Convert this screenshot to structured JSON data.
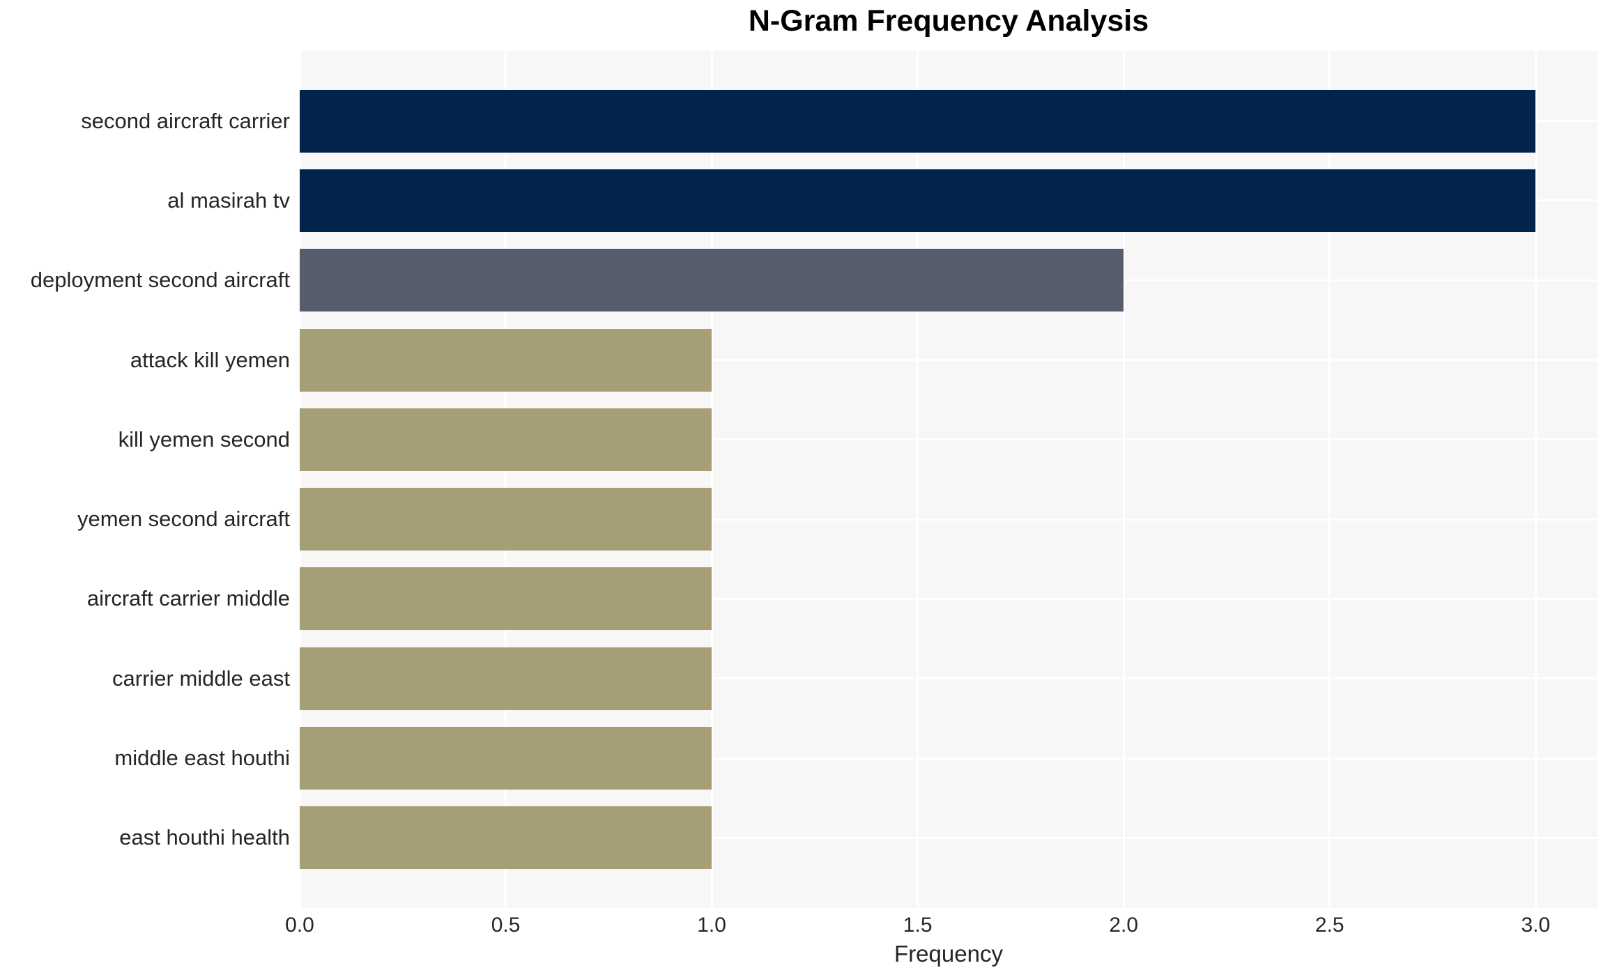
{
  "title": "N-Gram Frequency Analysis",
  "chart_data": {
    "type": "bar",
    "orientation": "horizontal",
    "title": "N-Gram Frequency Analysis",
    "xlabel": "Frequency",
    "ylabel": "",
    "categories": [
      "second aircraft carrier",
      "al masirah tv",
      "deployment second aircraft",
      "attack kill yemen",
      "kill yemen second",
      "yemen second aircraft",
      "aircraft carrier middle",
      "carrier middle east",
      "middle east houthi",
      "east houthi health"
    ],
    "values": [
      3,
      3,
      2,
      1,
      1,
      1,
      1,
      1,
      1,
      1
    ],
    "bar_colors": [
      "#02234c",
      "#02234c",
      "#575d6d",
      "#a69e74",
      "#a69e74",
      "#a69e74",
      "#a69e74",
      "#a69e74",
      "#a69e74",
      "#a69e74"
    ],
    "xticks": [
      0.0,
      0.5,
      1.0,
      1.5,
      2.0,
      2.5,
      3.0
    ],
    "xtick_labels": [
      "0.0",
      "0.5",
      "1.0",
      "1.5",
      "2.0",
      "2.5",
      "3.0"
    ],
    "xlim": [
      0,
      3.15
    ],
    "grid": true,
    "grid_color": "#ffffff",
    "plot_background": "#f7f7f7",
    "legend": null
  }
}
